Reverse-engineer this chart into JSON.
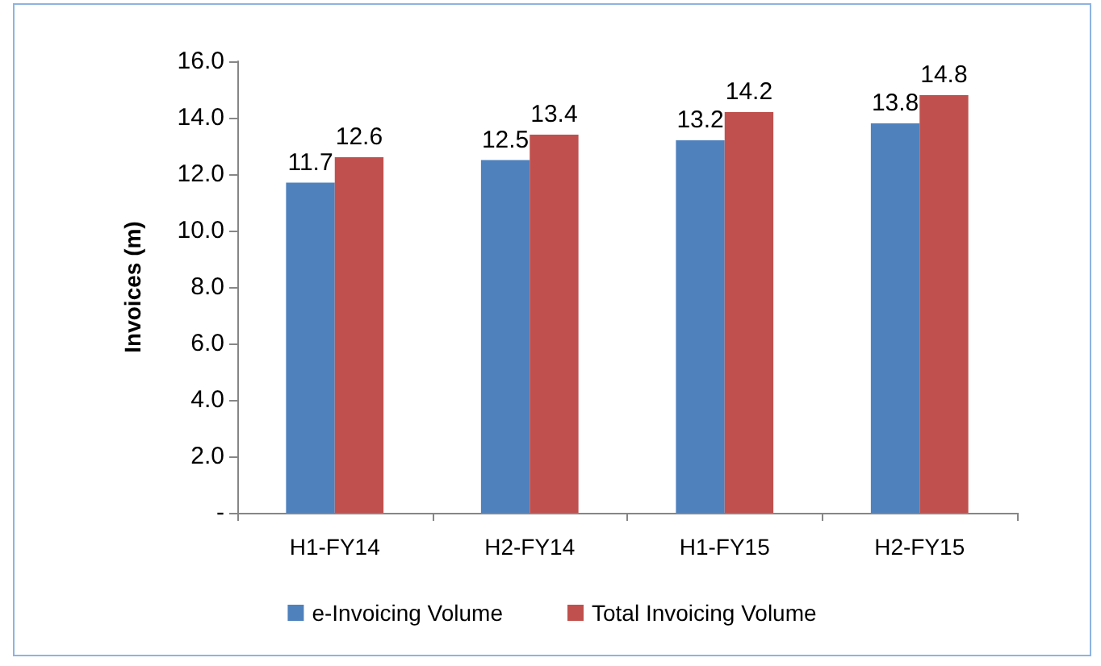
{
  "chart_data": {
    "type": "bar",
    "ylabel": "Invoices (m)",
    "categories": [
      "H1-FY14",
      "H2-FY14",
      "H1-FY15",
      "H2-FY15"
    ],
    "series": [
      {
        "name": "e-Invoicing Volume",
        "color": "#4f81bd",
        "values": [
          11.7,
          12.5,
          13.2,
          13.8
        ]
      },
      {
        "name": "Total Invoicing Volume",
        "color": "#c0504d",
        "values": [
          12.6,
          13.4,
          14.2,
          14.8
        ]
      }
    ],
    "ylim": [
      0,
      16
    ],
    "yticks": [
      {
        "value": 0,
        "label": "-"
      },
      {
        "value": 2,
        "label": "2.0"
      },
      {
        "value": 4,
        "label": "4.0"
      },
      {
        "value": 6,
        "label": "6.0"
      },
      {
        "value": 8,
        "label": "8.0"
      },
      {
        "value": 10,
        "label": "10.0"
      },
      {
        "value": 12,
        "label": "12.0"
      },
      {
        "value": 14,
        "label": "14.0"
      },
      {
        "value": 16,
        "label": "16.0"
      }
    ],
    "grid": false,
    "legend": "bottom",
    "data_labels": true
  }
}
